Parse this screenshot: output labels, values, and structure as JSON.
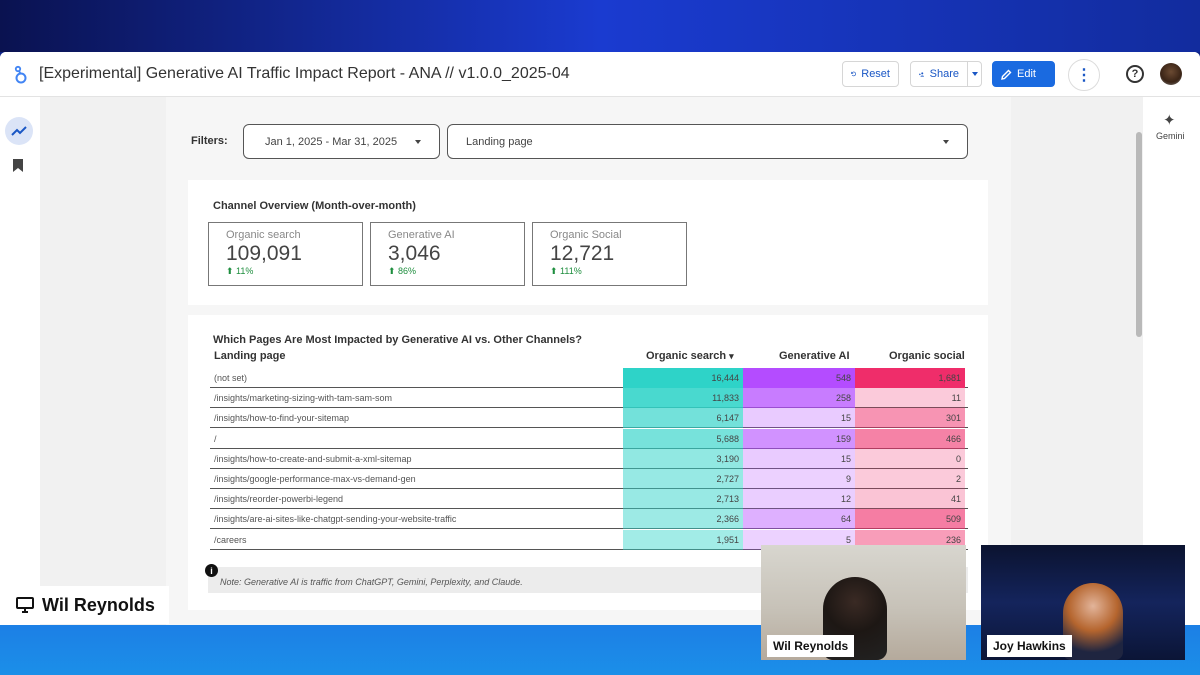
{
  "app": {
    "title": "[Experimental] Generative AI Traffic Impact Report - ANA // v1.0.0_2025-04",
    "buttons": {
      "reset": "Reset",
      "share": "Share",
      "edit": "Edit"
    },
    "right_panel": {
      "label": "Gemini"
    }
  },
  "filters": {
    "label": "Filters:",
    "date_range": "Jan 1, 2025 - Mar 31, 2025",
    "dimension": "Landing page"
  },
  "overview": {
    "title": "Channel Overview (Month-over-month)",
    "kpis": [
      {
        "label": "Organic search",
        "value": "109,091",
        "change": "11%"
      },
      {
        "label": "Generative AI",
        "value": "3,046",
        "change": "86%"
      },
      {
        "label": "Organic Social",
        "value": "12,721",
        "change": "111%"
      }
    ]
  },
  "pages_table": {
    "title": "Which Pages Are Most Impacted by Generative AI vs. Other Channels?",
    "columns": [
      "Landing page",
      "Organic search",
      "Generative AI",
      "Organic social"
    ],
    "sort_indicator": "▾",
    "rows": [
      {
        "page": "(not set)",
        "organic_search": "16,444",
        "generative_ai": "548",
        "organic_social": "1,681"
      },
      {
        "page": "/insights/marketing-sizing-with-tam-sam-som",
        "organic_search": "11,833",
        "generative_ai": "258",
        "organic_social": "11"
      },
      {
        "page": "/insights/how-to-find-your-sitemap",
        "organic_search": "6,147",
        "generative_ai": "15",
        "organic_social": "301"
      },
      {
        "page": "/",
        "organic_search": "5,688",
        "generative_ai": "159",
        "organic_social": "466"
      },
      {
        "page": "/insights/how-to-create-and-submit-a-xml-sitemap",
        "organic_search": "3,190",
        "generative_ai": "15",
        "organic_social": "0"
      },
      {
        "page": "/insights/google-performance-max-vs-demand-gen",
        "organic_search": "2,727",
        "generative_ai": "9",
        "organic_social": "2"
      },
      {
        "page": "/insights/reorder-powerbi-legend",
        "organic_search": "2,713",
        "generative_ai": "12",
        "organic_social": "41"
      },
      {
        "page": "/insights/are-ai-sites-like-chatgpt-sending-your-website-traffic",
        "organic_search": "2,366",
        "generative_ai": "64",
        "organic_social": "509"
      },
      {
        "page": "/careers",
        "organic_search": "1,951",
        "generative_ai": "5",
        "organic_social": "236"
      }
    ],
    "heat_colors": {
      "organic_search": "#2ed3c8",
      "generative_ai": "#b44cff",
      "organic_social": "#ef2d6a"
    },
    "note": "Note: Generative AI is traffic from ChatGPT, Gemini, Perplexity, and Claude."
  },
  "meeting": {
    "presenter": "Wil Reynolds",
    "participants": [
      {
        "name": "Wil Reynolds"
      },
      {
        "name": "Joy Hawkins"
      }
    ]
  }
}
